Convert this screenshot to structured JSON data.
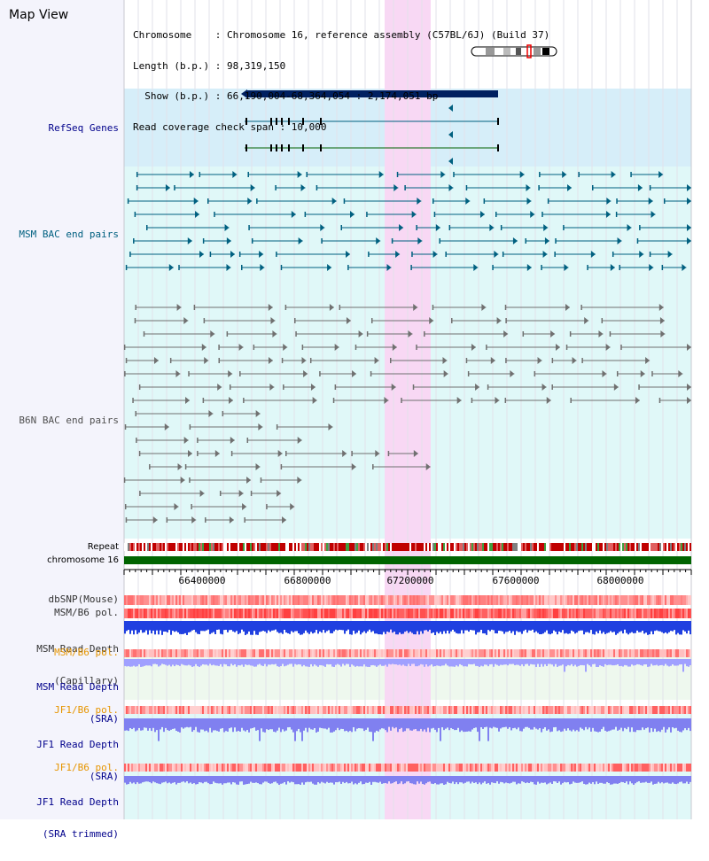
{
  "view": {
    "title": "Map View",
    "info": {
      "chromosome": "Chromosome    : Chromosome 16, reference assembly (C57BL/6J) (Build 37)",
      "length": "Length (b.p.) : 98,319,150",
      "show": "  Show (b.p.) : 66,190,004-68,364,054 : 2,174,051 bp",
      "coverage": "Read coverage check span : 10,000"
    }
  },
  "tracks": {
    "refseq": "RefSeq Genes",
    "msm_bac": "MSM BAC end pairs",
    "b6n_bac": "B6N BAC end pairs",
    "repeat": "Repeat",
    "chrom": "chromosome 16",
    "dbsnp": "dbSNP(Mouse)",
    "msm_b6_pol": "MSM/B6 pol.",
    "msm_depth_cap_1": "MSM Read Depth",
    "msm_depth_cap_2": "(Capillary)",
    "msm_b6_pol_2": "MSM/B6 pol.",
    "msm_depth_sra_1": "MSM Read Depth",
    "msm_depth_sra_2": "(SRA)",
    "jf1_pol": "JF1/B6 pol.",
    "jf1_depth_sra_1": "JF1 Read Depth",
    "jf1_depth_sra_2": "(SRA)",
    "jf1_pol_2": "JF1/B6 pol.",
    "jf1_depth_trim_1": "JF1 Read Depth",
    "jf1_depth_trim_2": "(SRA trimmed)"
  },
  "axis": {
    "ticks": [
      "66400000",
      "66800000",
      "67200000",
      "67600000",
      "68000000"
    ]
  },
  "colors": {
    "refseq_bg": "#d6eef9",
    "bac_bg": "#e0f8f8",
    "highlight": "#f8d8f4",
    "gene": "#002060",
    "msm_pair": "#006080",
    "b6n_pair": "#707070",
    "label_blue": "#00008b",
    "label_msm": "#006080",
    "label_b6n": "#505050",
    "label_orange": "#e69500",
    "chrom_bar": "#006400"
  }
}
